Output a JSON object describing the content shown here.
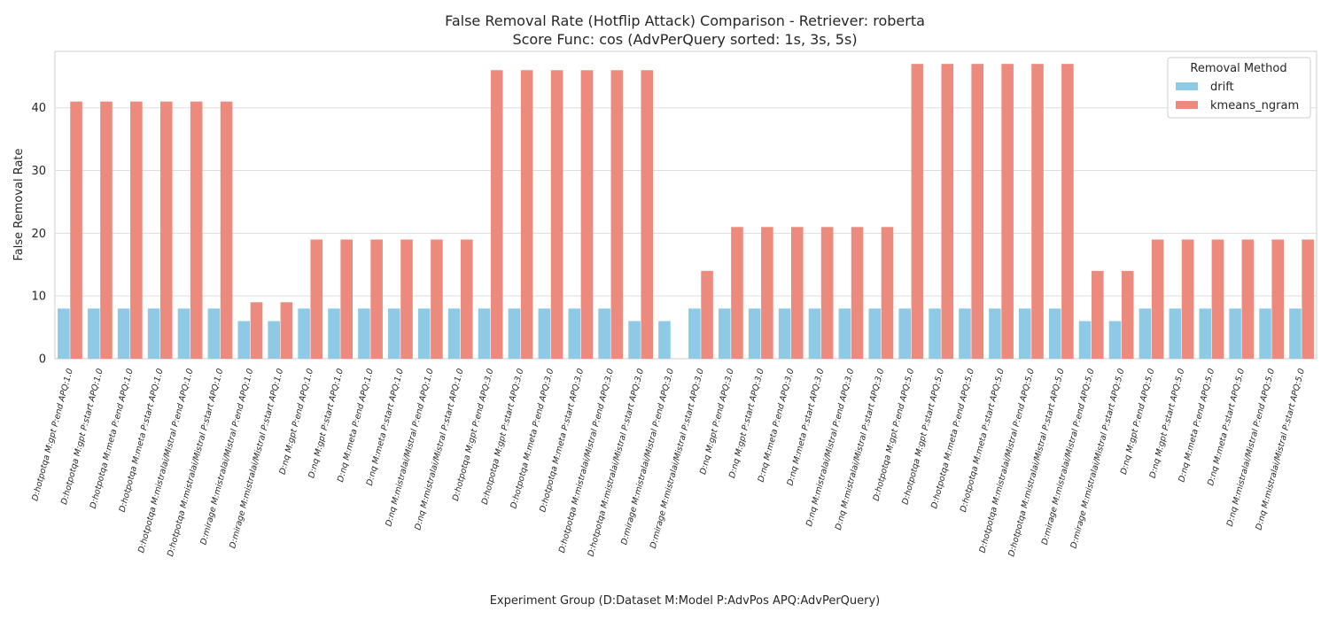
{
  "chart_data": {
    "type": "bar",
    "title_line1": "False Removal Rate (Hotflip Attack) Comparison - Retriever: roberta",
    "title_line2": "Score Func: cos (AdvPerQuery sorted: 1s, 3s, 5s)",
    "xlabel": "Experiment Group (D:Dataset M:Model P:AdvPos APQ:AdvPerQuery)",
    "ylabel": "False Removal Rate",
    "ylim": [
      0,
      49
    ],
    "yticks": [
      0,
      10,
      20,
      30,
      40
    ],
    "grid": "y",
    "legend": {
      "title": "Removal Method",
      "placement": "top-right"
    },
    "categories": [
      "D:hotpotqa M:gpt P:end APQ:1.0",
      "D:hotpotqa M:gpt P:start APQ:1.0",
      "D:hotpotqa M:meta P:end APQ:1.0",
      "D:hotpotqa M:meta P:start APQ:1.0",
      "D:hotpotqa M:mistralai/Mistral P:end APQ:1.0",
      "D:hotpotqa M:mistralai/Mistral P:start APQ:1.0",
      "D:mirage M:mistralai/Mistral P:end APQ:1.0",
      "D:mirage M:mistralai/Mistral P:start APQ:1.0",
      "D:nq M:gpt P:end APQ:1.0",
      "D:nq M:gpt P:start APQ:1.0",
      "D:nq M:meta P:end APQ:1.0",
      "D:nq M:meta P:start APQ:1.0",
      "D:nq M:mistralai/Mistral P:end APQ:1.0",
      "D:nq M:mistralai/Mistral P:start APQ:1.0",
      "D:hotpotqa M:gpt P:end APQ:3.0",
      "D:hotpotqa M:gpt P:start APQ:3.0",
      "D:hotpotqa M:meta P:end APQ:3.0",
      "D:hotpotqa M:meta P:start APQ:3.0",
      "D:hotpotqa M:mistralai/Mistral P:end APQ:3.0",
      "D:hotpotqa M:mistralai/Mistral P:start APQ:3.0",
      "D:mirage M:mistralai/Mistral P:end APQ:3.0",
      "D:mirage M:mistralai/Mistral P:start APQ:3.0",
      "D:nq M:gpt P:end APQ:3.0",
      "D:nq M:gpt P:start APQ:3.0",
      "D:nq M:meta P:end APQ:3.0",
      "D:nq M:meta P:start APQ:3.0",
      "D:nq M:mistralai/Mistral P:end APQ:3.0",
      "D:nq M:mistralai/Mistral P:start APQ:3.0",
      "D:hotpotqa M:gpt P:end APQ:5.0",
      "D:hotpotqa M:gpt P:start APQ:5.0",
      "D:hotpotqa M:meta P:end APQ:5.0",
      "D:hotpotqa M:meta P:start APQ:5.0",
      "D:hotpotqa M:mistralai/Mistral P:end APQ:5.0",
      "D:hotpotqa M:mistralai/Mistral P:start APQ:5.0",
      "D:mirage M:mistralai/Mistral P:end APQ:5.0",
      "D:mirage M:mistralai/Mistral P:start APQ:5.0",
      "D:nq M:gpt P:end APQ:5.0",
      "D:nq M:gpt P:start APQ:5.0",
      "D:nq M:meta P:end APQ:5.0",
      "D:nq M:meta P:start APQ:5.0",
      "D:nq M:mistralai/Mistral P:end APQ:5.0",
      "D:nq M:mistralai/Mistral P:start APQ:5.0"
    ],
    "series": [
      {
        "name": "drift",
        "color": "#8ecae6",
        "values": [
          8,
          8,
          8,
          8,
          8,
          8,
          6,
          6,
          8,
          8,
          8,
          8,
          8,
          8,
          8,
          8,
          8,
          8,
          8,
          6,
          6,
          8,
          8,
          8,
          8,
          8,
          8,
          8,
          8,
          8,
          8,
          8,
          8,
          8,
          6,
          6,
          8,
          8,
          8,
          8,
          8,
          8
        ]
      },
      {
        "name": "kmeans_ngram",
        "color": "#ec8b7d",
        "values": [
          41,
          41,
          41,
          41,
          41,
          41,
          9,
          9,
          19,
          19,
          19,
          19,
          19,
          19,
          46,
          46,
          46,
          46,
          46,
          46,
          0,
          14,
          21,
          21,
          21,
          21,
          21,
          21,
          47,
          47,
          47,
          47,
          47,
          47,
          14,
          14,
          19,
          19,
          19,
          19,
          19,
          19
        ]
      }
    ]
  }
}
